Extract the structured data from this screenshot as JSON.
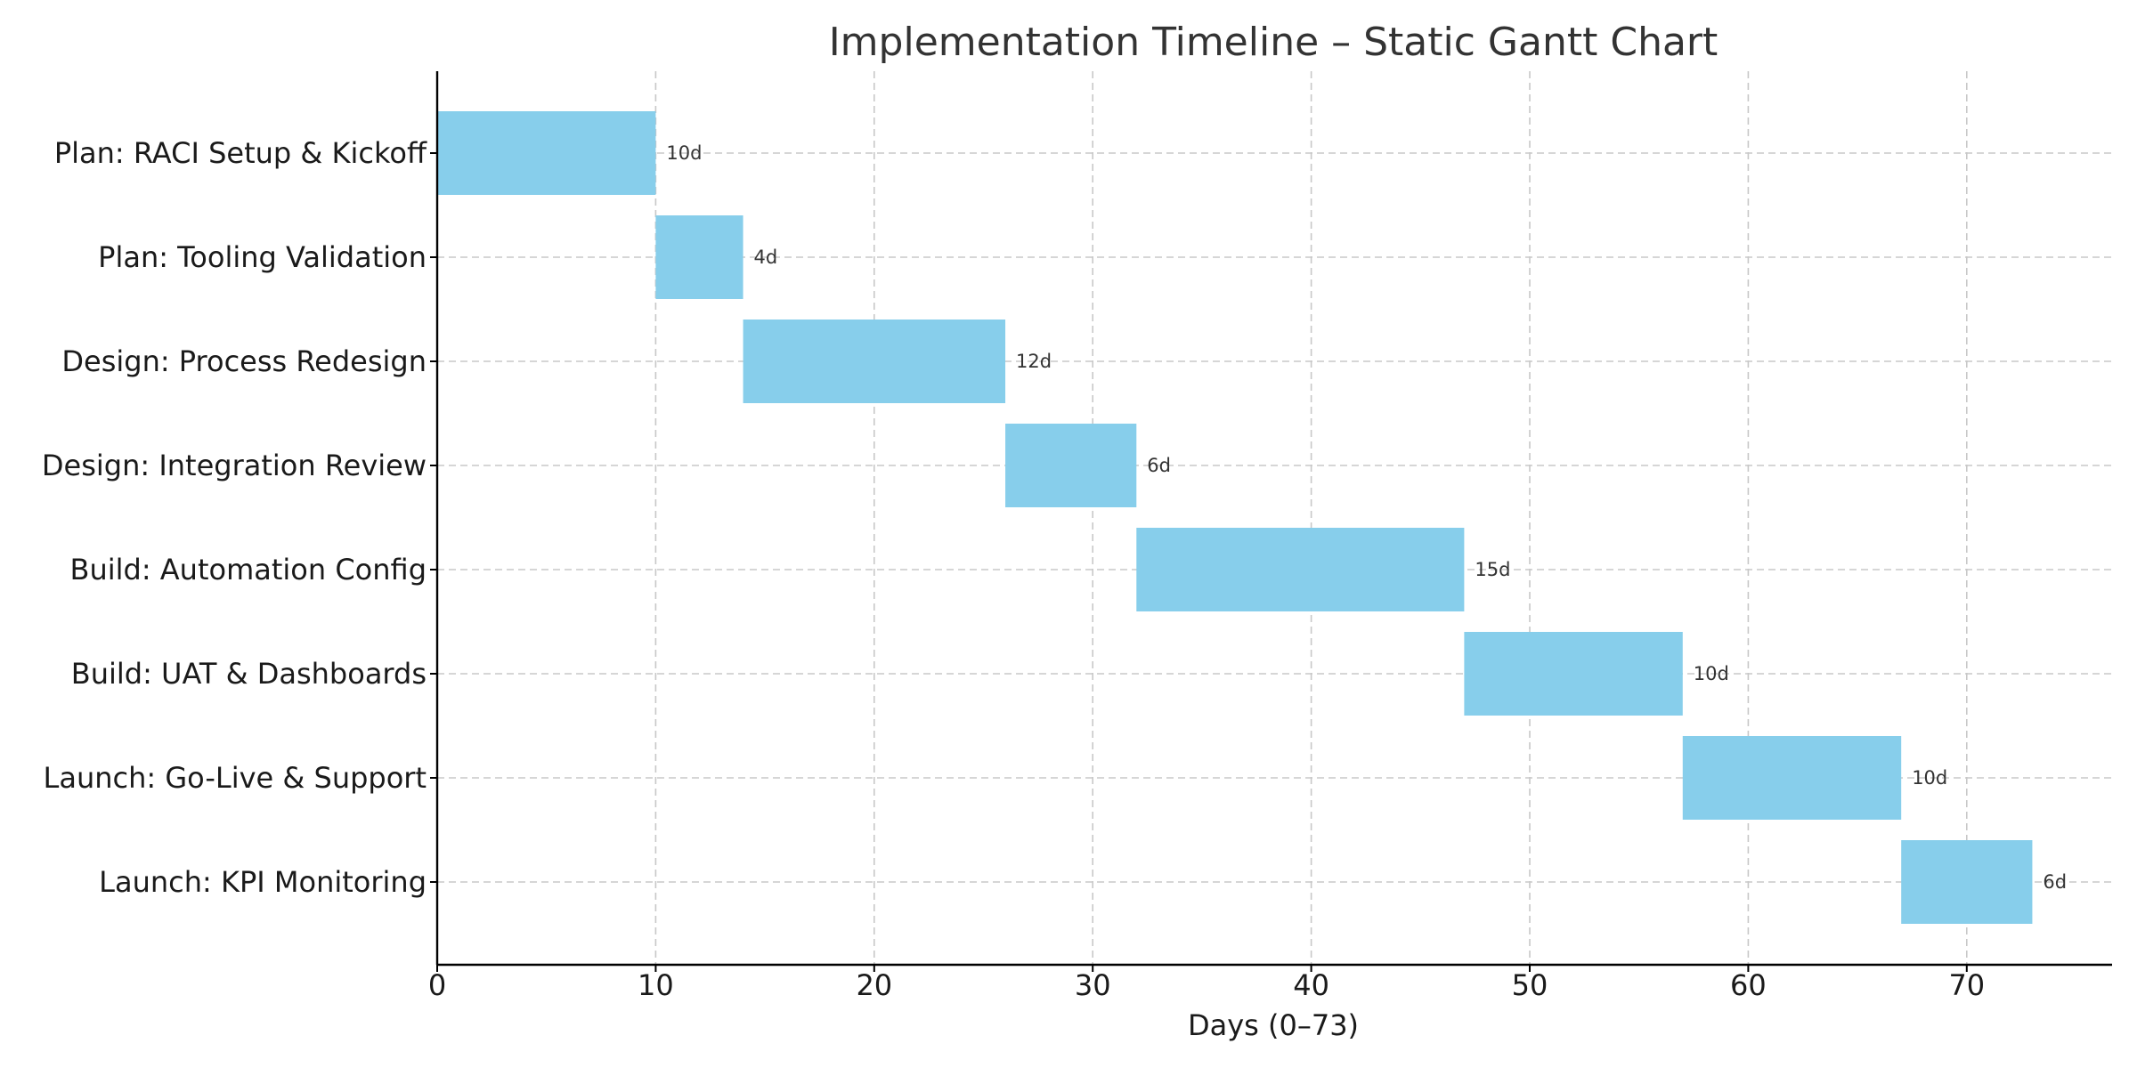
{
  "chart_data": {
    "type": "bar",
    "orientation": "horizontal",
    "title": "Implementation Timeline – Static Gantt Chart",
    "xlabel": "Days (0–73)",
    "ylabel": "",
    "xlim": [
      0,
      76.65
    ],
    "xticks": [
      0,
      10,
      20,
      30,
      40,
      50,
      60,
      70
    ],
    "grid": true,
    "bar_color": "#87ceeb",
    "tasks": [
      {
        "name": "Plan: RACI Setup & Kickoff",
        "start": 0,
        "duration": 10,
        "label": "10d"
      },
      {
        "name": "Plan: Tooling Validation",
        "start": 10,
        "duration": 4,
        "label": "4d"
      },
      {
        "name": "Design: Process Redesign",
        "start": 14,
        "duration": 12,
        "label": "12d"
      },
      {
        "name": "Design: Integration Review",
        "start": 26,
        "duration": 6,
        "label": "6d"
      },
      {
        "name": "Build: Automation Config",
        "start": 32,
        "duration": 15,
        "label": "15d"
      },
      {
        "name": "Build: UAT & Dashboards",
        "start": 47,
        "duration": 10,
        "label": "10d"
      },
      {
        "name": "Launch: Go-Live & Support",
        "start": 57,
        "duration": 10,
        "label": "10d"
      },
      {
        "name": "Launch: KPI Monitoring",
        "start": 67,
        "duration": 6,
        "label": "6d"
      }
    ]
  }
}
